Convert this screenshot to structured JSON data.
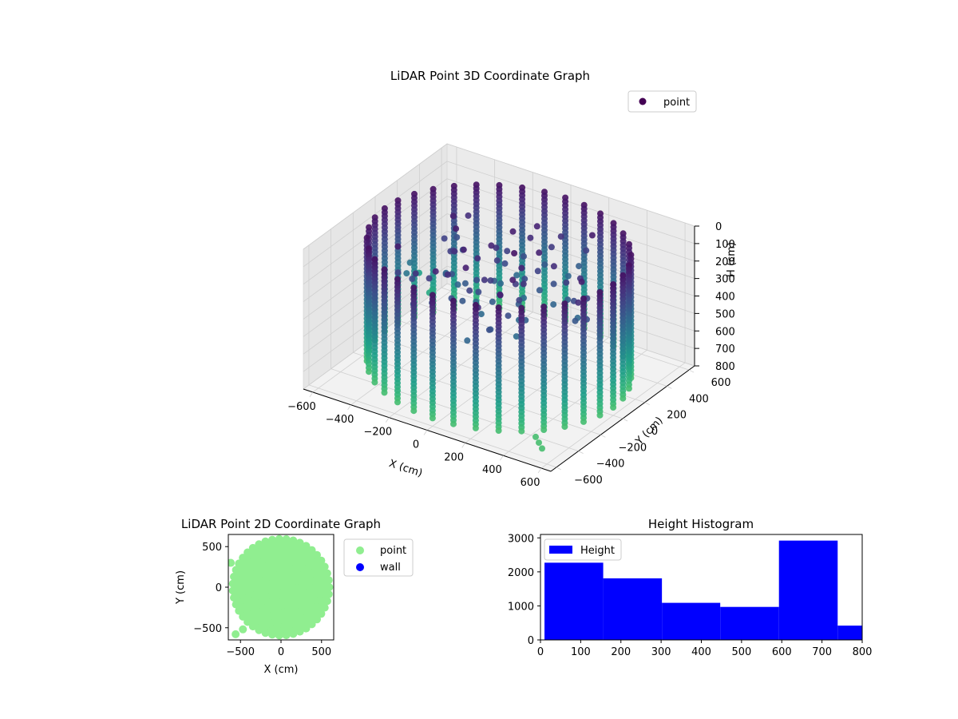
{
  "chart_data": [
    {
      "type": "scatter",
      "projection": "3d",
      "title": "LiDAR Point 3D Coordinate Graph",
      "xlabel": "X (cm)",
      "ylabel": "Y (cm)",
      "zlabel": "H (cm)",
      "xlim": [
        -650,
        650
      ],
      "ylim": [
        -650,
        650
      ],
      "zlim": [
        800,
        0
      ],
      "z_inverted": true,
      "xticks": [
        "−600",
        "−400",
        "−200",
        "0",
        "200",
        "400",
        "600"
      ],
      "yticks": [
        "−600",
        "−400",
        "−200",
        "0",
        "200",
        "400",
        "600"
      ],
      "zticks": [
        "0",
        "100",
        "200",
        "300",
        "400",
        "500",
        "600",
        "700",
        "800"
      ],
      "grid": true,
      "colormap": "viridis",
      "legend": {
        "placement": "top-right",
        "entries": [
          {
            "label": "point",
            "color": "#440154"
          }
        ]
      },
      "series": [
        {
          "name": "point",
          "shape": "cylindrical wall of vertical scan columns, radius ≈ 600",
          "columns_angles_deg": [
            0,
            10,
            20,
            30,
            40,
            50,
            60,
            70,
            80,
            90,
            100,
            110,
            120,
            130,
            140,
            150,
            160,
            170,
            180,
            190,
            200,
            210,
            220,
            230,
            240,
            250,
            260,
            270,
            280,
            290,
            300,
            310,
            320,
            330,
            340,
            350
          ],
          "radius": 600,
          "h_range": [
            50,
            760
          ],
          "outliers": [
            {
              "x": -640,
              "y": 500,
              "h": 760
            },
            {
              "x": -640,
              "y": 380,
              "h": 610
            },
            {
              "x": -540,
              "y": 300,
              "h": 650
            },
            {
              "x": -560,
              "y": 160,
              "h": 420
            },
            {
              "x": -520,
              "y": 60,
              "h": 420
            },
            {
              "x": 460,
              "y": -460,
              "h": 760
            },
            {
              "x": 500,
              "y": -500,
              "h": 760
            },
            {
              "x": 540,
              "y": -540,
              "h": 760
            }
          ]
        }
      ]
    },
    {
      "type": "scatter",
      "title": "LiDAR Point 2D Coordinate Graph",
      "xlabel": "X (cm)",
      "ylabel": "Y (cm)",
      "xlim": [
        -650,
        650
      ],
      "ylim": [
        -650,
        650
      ],
      "xticks": [
        "−500",
        "0",
        "500"
      ],
      "yticks": [
        "500",
        "0",
        "−500"
      ],
      "legend": {
        "placement": "outside-right",
        "entries": [
          {
            "label": "point",
            "color": "#90ee90"
          },
          {
            "label": "wall",
            "color": "#0000ff"
          }
        ]
      },
      "series": [
        {
          "name": "point",
          "color": "#90ee90",
          "shape": "filled disk of radius ≈ 620 centered near (0, 0)"
        },
        {
          "name": "wall",
          "color": "#0000ff",
          "points": []
        }
      ]
    },
    {
      "type": "bar",
      "title": "Height Histogram",
      "xlim": [
        0,
        800
      ],
      "ylim": [
        0,
        3100
      ],
      "xticks": [
        "0",
        "100",
        "200",
        "300",
        "400",
        "500",
        "600",
        "700",
        "800"
      ],
      "yticks": [
        "0",
        "1000",
        "2000",
        "3000"
      ],
      "bar_color": "#0000ff",
      "legend": {
        "placement": "top-left",
        "entries": [
          {
            "label": "Height",
            "color": "#0000ff"
          }
        ]
      },
      "bins": [
        {
          "x0": 10,
          "x1": 156,
          "count": 2270
        },
        {
          "x0": 156,
          "x1": 302,
          "count": 1810
        },
        {
          "x0": 302,
          "x1": 447,
          "count": 1090
        },
        {
          "x0": 447,
          "x1": 593,
          "count": 970
        },
        {
          "x0": 593,
          "x1": 739,
          "count": 2920
        },
        {
          "x0": 739,
          "x1": 800,
          "count": 420
        }
      ]
    }
  ]
}
